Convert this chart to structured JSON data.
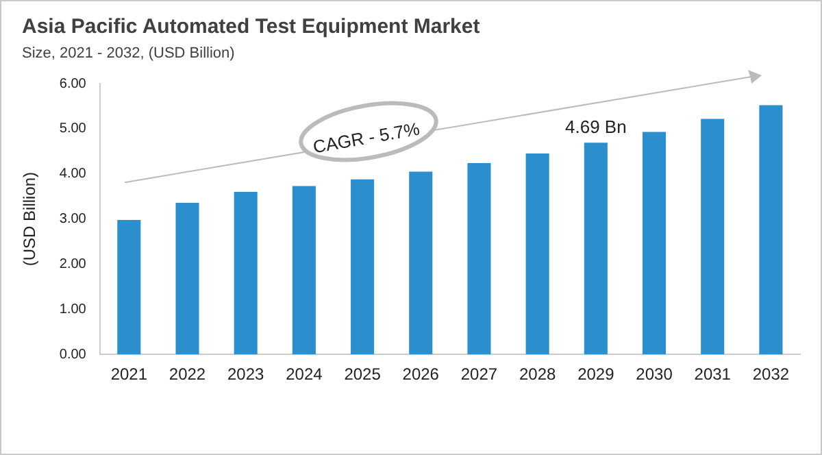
{
  "chart_data": {
    "type": "bar",
    "title": "Asia Pacific Automated Test Equipment Market",
    "subtitle": "Size, 2021 - 2032, (USD Billion)",
    "ylabel": "(USD Billion)",
    "categories": [
      "2021",
      "2022",
      "2023",
      "2024",
      "2025",
      "2026",
      "2027",
      "2028",
      "2029",
      "2030",
      "2031",
      "2032"
    ],
    "values": [
      2.98,
      3.36,
      3.6,
      3.73,
      3.88,
      4.05,
      4.24,
      4.45,
      4.69,
      4.93,
      5.22,
      5.52
    ],
    "value_labels": [
      null,
      null,
      null,
      null,
      null,
      null,
      null,
      null,
      "4.69 Bn",
      null,
      null,
      null
    ],
    "color": "#2b8fce",
    "ylim": [
      0,
      6
    ],
    "yticks": [
      {
        "value": 0,
        "label": "0.00"
      },
      {
        "value": 1,
        "label": "1.00"
      },
      {
        "value": 2,
        "label": "2.00"
      },
      {
        "value": 3,
        "label": "3.00"
      },
      {
        "value": 4,
        "label": "4.00"
      },
      {
        "value": 5,
        "label": "5.00"
      },
      {
        "value": 6,
        "label": "6.00"
      }
    ],
    "grid": false,
    "legend": false,
    "annotations": [
      "CAGR - 5.7%"
    ]
  }
}
